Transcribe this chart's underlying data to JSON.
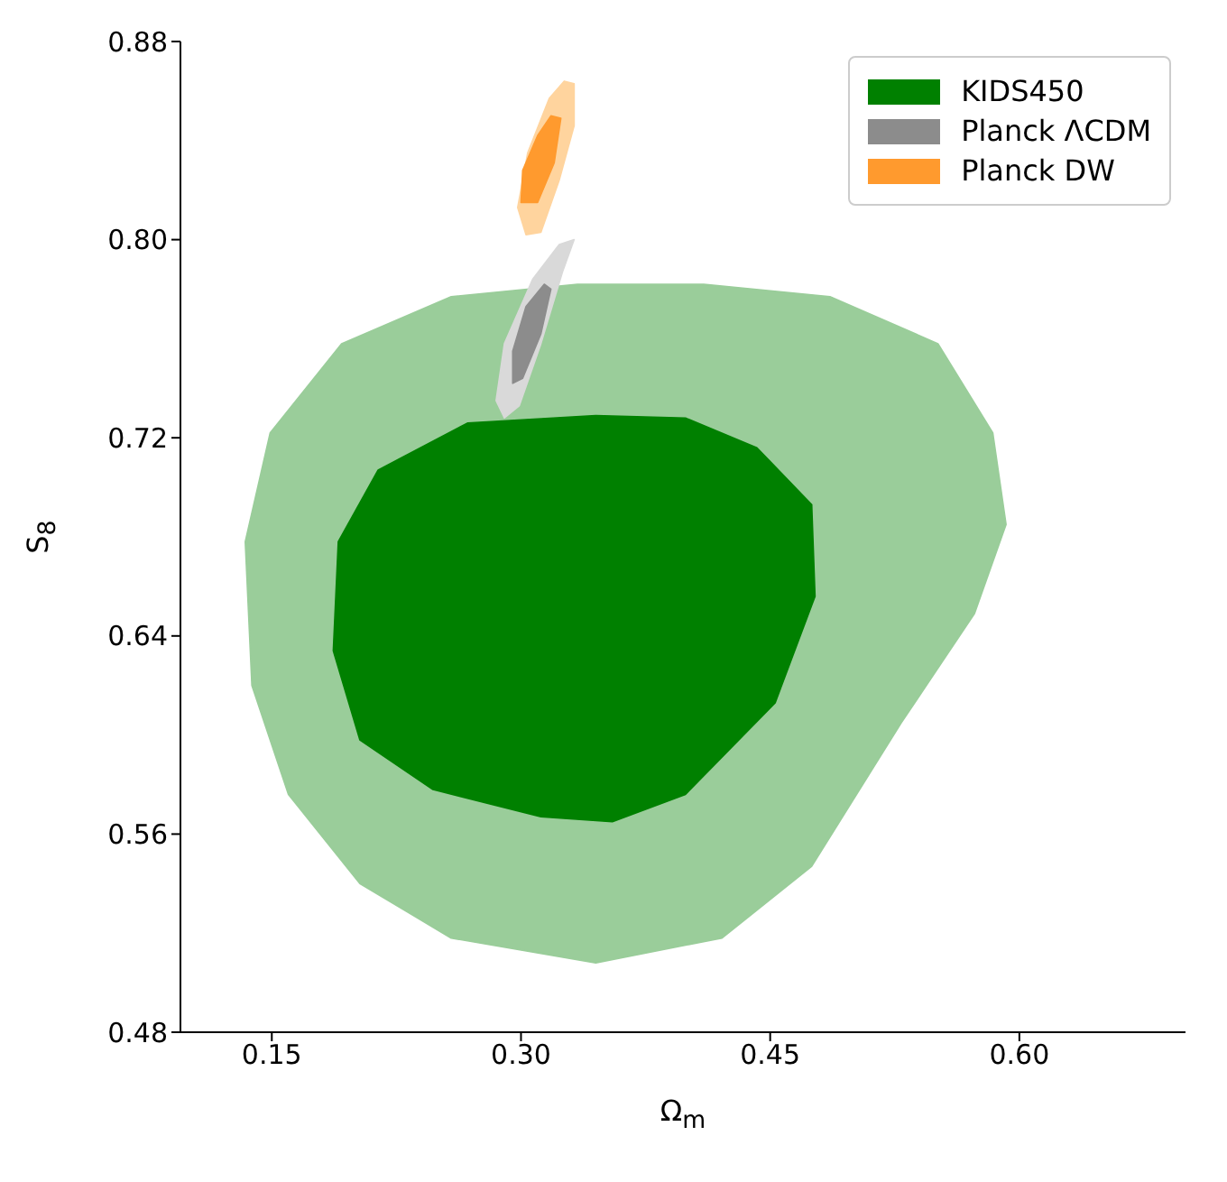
{
  "chart_data": {
    "type": "area",
    "xlabel": "Ω$_{m}$",
    "ylabel": "S$_{8}$",
    "legend": "top right",
    "grid": false,
    "xlim": [
      0.095,
      0.7
    ],
    "ylim": [
      0.48,
      0.88
    ],
    "xticks": [
      {
        "value": 0.15,
        "label": "0.15"
      },
      {
        "value": 0.3,
        "label": "0.30"
      },
      {
        "value": 0.45,
        "label": "0.45"
      },
      {
        "value": 0.6,
        "label": "0.60"
      }
    ],
    "yticks": [
      {
        "value": 0.48,
        "label": "0.48"
      },
      {
        "value": 0.56,
        "label": "0.56"
      },
      {
        "value": 0.64,
        "label": "0.64"
      },
      {
        "value": 0.72,
        "label": "0.72"
      },
      {
        "value": 0.8,
        "label": "0.80"
      },
      {
        "value": 0.88,
        "label": "0.88"
      }
    ],
    "series": [
      {
        "color": "#9acd9a",
        "x": [
          0.334,
          0.258,
          0.192,
          0.149,
          0.134,
          0.138,
          0.16,
          0.203,
          0.258,
          0.345,
          0.421,
          0.475,
          0.529,
          0.573,
          0.592,
          0.584,
          0.551,
          0.486,
          0.41
        ],
        "values": [
          0.782,
          0.777,
          0.758,
          0.722,
          0.678,
          0.62,
          0.576,
          0.54,
          0.518,
          0.508,
          0.518,
          0.547,
          0.605,
          0.649,
          0.685,
          0.722,
          0.758,
          0.777,
          0.782
        ]
      },
      {
        "name": "KIDS450",
        "color": "#008000",
        "x": [
          0.345,
          0.268,
          0.214,
          0.19,
          0.187,
          0.203,
          0.247,
          0.312,
          0.355,
          0.399,
          0.453,
          0.477,
          0.475,
          0.442,
          0.399
        ],
        "values": [
          0.729,
          0.726,
          0.707,
          0.678,
          0.634,
          0.598,
          0.578,
          0.567,
          0.565,
          0.576,
          0.613,
          0.656,
          0.693,
          0.716,
          0.728
        ]
      },
      {
        "color": "#d9d9d9",
        "x": [
          0.332,
          0.325,
          0.312,
          0.299,
          0.29,
          0.285,
          0.29,
          0.307,
          0.323
        ],
        "values": [
          0.8,
          0.787,
          0.758,
          0.733,
          0.728,
          0.735,
          0.758,
          0.784,
          0.798
        ]
      },
      {
        "name": "Planck ΛCDM",
        "color": "#8c8c8c",
        "x": [
          0.318,
          0.312,
          0.301,
          0.295,
          0.295,
          0.303,
          0.314
        ],
        "values": [
          0.78,
          0.762,
          0.744,
          0.742,
          0.755,
          0.773,
          0.782
        ]
      },
      {
        "color": "#ffd49e",
        "x": [
          0.332,
          0.332,
          0.323,
          0.312,
          0.303,
          0.298,
          0.304,
          0.317,
          0.326
        ],
        "values": [
          0.863,
          0.846,
          0.824,
          0.803,
          0.802,
          0.813,
          0.835,
          0.857,
          0.864
        ]
      },
      {
        "name": "Planck DW",
        "color": "#ff9a2e",
        "x": [
          0.324,
          0.32,
          0.31,
          0.3,
          0.301,
          0.31,
          0.318
        ],
        "values": [
          0.849,
          0.831,
          0.815,
          0.815,
          0.828,
          0.842,
          0.85
        ]
      }
    ]
  }
}
